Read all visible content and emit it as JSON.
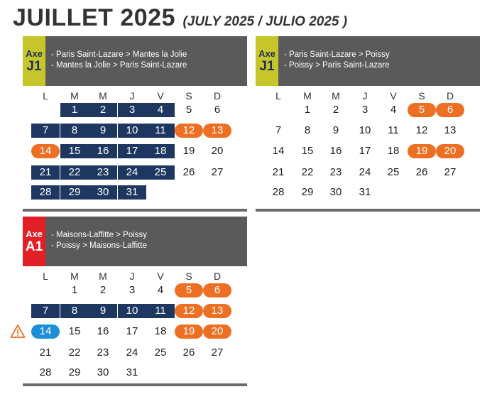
{
  "title": "JUILLET 2025",
  "subtitle": "(JULY 2025 / JULIO 2025 )",
  "weekdays": [
    "L",
    "M",
    "M",
    "J",
    "V",
    "S",
    "D"
  ],
  "colors": {
    "navy": "#1e3760",
    "orange": "#ed6f24",
    "blue": "#1c8fd8",
    "header": "#5a5a5a",
    "yellow": "#c6c62a",
    "red": "#e21f26"
  },
  "panels": [
    {
      "axe": "Axe",
      "line": "J1",
      "badge_color": "yellow",
      "routes": [
        "-  Paris Saint-Lazare > Mantes la Jolie",
        "-  Mantes la Jolie  > Paris Saint-Lazare"
      ],
      "first_col": 1,
      "days": [
        "",
        "navy",
        "navy",
        "navy",
        "navy",
        "",
        "",
        "navy",
        "navy",
        "navy",
        "navy",
        "navy",
        "orange",
        "orange",
        "orange",
        "navy",
        "navy",
        "navy",
        "navy",
        "",
        "",
        "navy",
        "navy",
        "navy",
        "navy",
        "navy",
        "",
        "",
        "navy",
        "navy",
        "navy",
        "navy"
      ]
    },
    {
      "axe": "Axe",
      "line": "J1",
      "badge_color": "yellow",
      "routes": [
        "-  Paris Saint-Lazare > Poissy",
        "-  Poissy  > Paris Saint-Lazare"
      ],
      "first_col": 1,
      "days": [
        "",
        "",
        "",
        "",
        "",
        "orange",
        "orange",
        "",
        "",
        "",
        "",
        "",
        "",
        "",
        "",
        "",
        "",
        "",
        "",
        "orange",
        "orange",
        "",
        "",
        "",
        "",
        "",
        "",
        "",
        "",
        "",
        "",
        ""
      ]
    },
    {
      "axe": "Axe",
      "line": "A1",
      "badge_color": "red",
      "routes": [
        "-  Maisons-Laffitte > Poissy",
        "-  Poissy > Maisons-Laffitte"
      ],
      "first_col": 1,
      "warning_icon": "warning-triangle-icon",
      "days": [
        "",
        "",
        "",
        "",
        "",
        "orange",
        "orange",
        "navy",
        "navy",
        "navy",
        "navy",
        "navy",
        "orange",
        "orange",
        "blue",
        "",
        "",
        "",
        "",
        "orange",
        "orange",
        "",
        "",
        "",
        "",
        "",
        "",
        "",
        "",
        "",
        "",
        ""
      ]
    }
  ]
}
